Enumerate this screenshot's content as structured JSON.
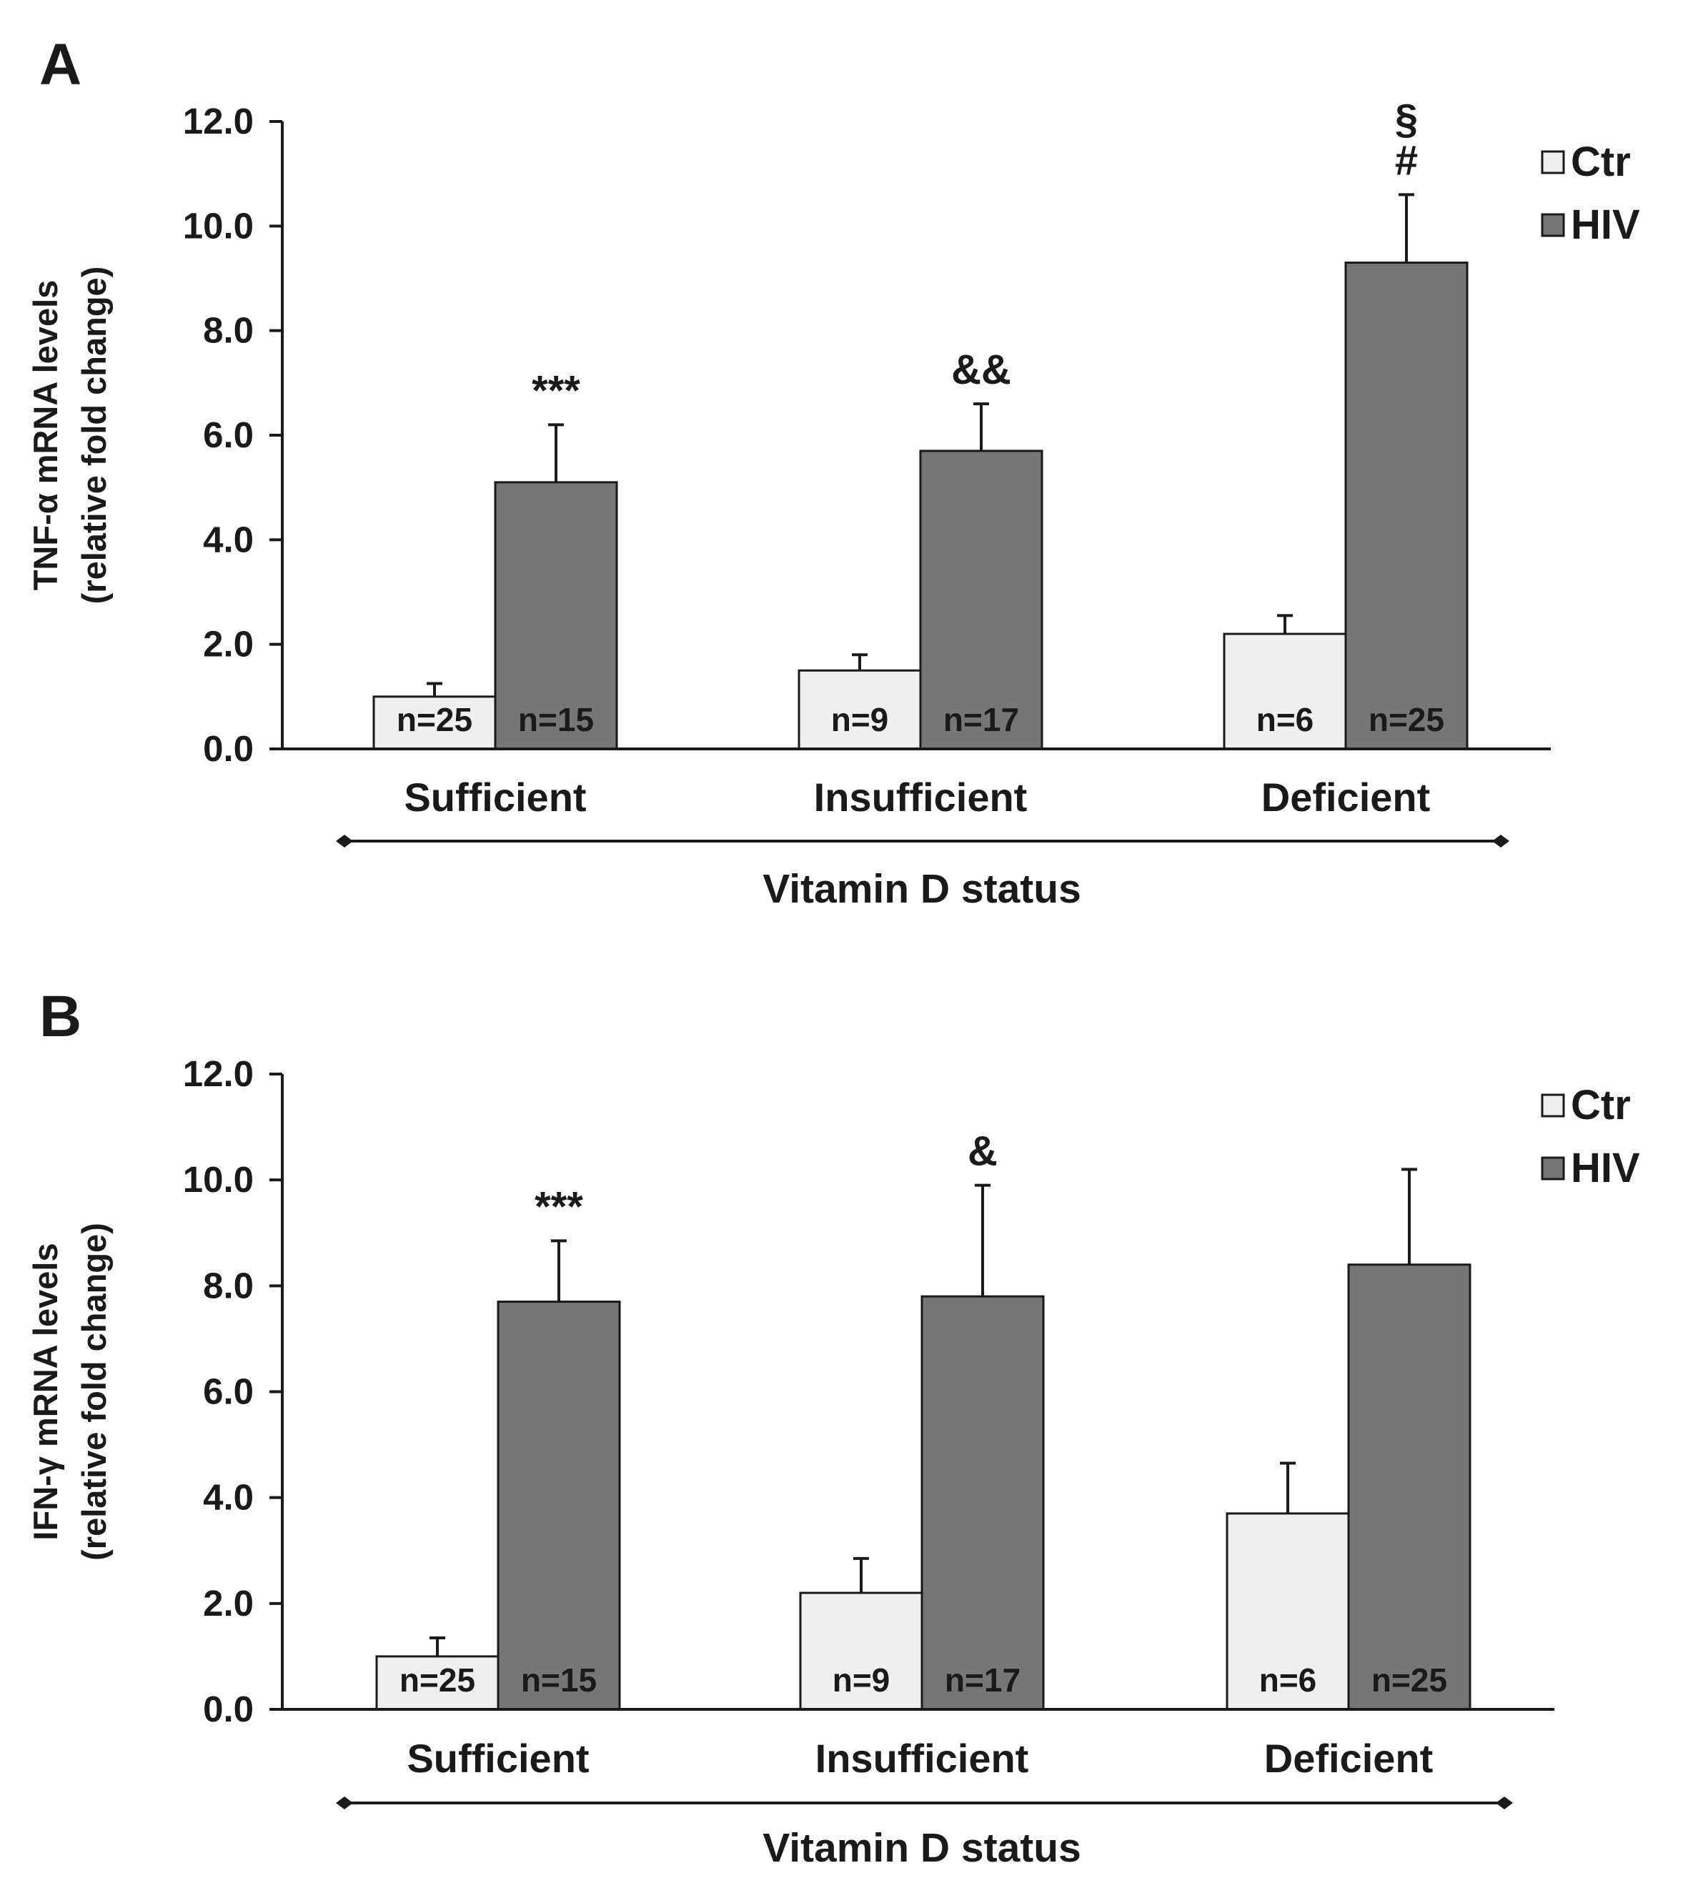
{
  "colors": {
    "ctr_fill": "#efefef",
    "hiv_fill": "#767676",
    "stroke": "#1a1a1a"
  },
  "chart_data": [
    {
      "panel": "A",
      "type": "bar",
      "ylabel_line1": "TNF-α mRNA levels",
      "ylabel_line2": "(relative fold change)",
      "xlabel": "Vitamin D status",
      "ylim": [
        0,
        12
      ],
      "yticks": [
        "0.0",
        "2.0",
        "4.0",
        "6.0",
        "8.0",
        "10.0",
        "12.0"
      ],
      "categories": [
        "Sufficient",
        "Insufficient",
        "Deficient"
      ],
      "legend": [
        "Ctr",
        "HIV"
      ],
      "series": [
        {
          "name": "Ctr",
          "values": [
            1.0,
            1.5,
            2.2
          ],
          "errors": [
            0.25,
            0.3,
            0.35
          ],
          "n": [
            "n=25",
            "n=9",
            "n=6"
          ],
          "sig": [
            "",
            "",
            ""
          ]
        },
        {
          "name": "HIV",
          "values": [
            5.1,
            5.7,
            9.3
          ],
          "errors": [
            1.1,
            0.9,
            1.3
          ],
          "n": [
            "n=15",
            "n=17",
            "n=25"
          ],
          "sig": [
            "***",
            "&&",
            "§\n#"
          ]
        }
      ]
    },
    {
      "panel": "B",
      "type": "bar",
      "ylabel_line1": "IFN-γ mRNA levels",
      "ylabel_line2": "(relative fold change)",
      "xlabel": "Vitamin D status",
      "ylim": [
        0,
        12
      ],
      "yticks": [
        "0.0",
        "2.0",
        "4.0",
        "6.0",
        "8.0",
        "10.0",
        "12.0"
      ],
      "categories": [
        "Sufficient",
        "Insufficient",
        "Deficient"
      ],
      "legend": [
        "Ctr",
        "HIV"
      ],
      "series": [
        {
          "name": "Ctr",
          "values": [
            1.0,
            2.2,
            3.7
          ],
          "errors": [
            0.35,
            0.65,
            0.95
          ],
          "n": [
            "n=25",
            "n=9",
            "n=6"
          ],
          "sig": [
            "",
            "",
            ""
          ]
        },
        {
          "name": "HIV",
          "values": [
            7.7,
            7.8,
            8.4
          ],
          "errors": [
            1.15,
            2.1,
            1.8
          ],
          "n": [
            "n=15",
            "n=17",
            "n=25"
          ],
          "sig": [
            "***",
            "&",
            ""
          ]
        }
      ]
    }
  ]
}
